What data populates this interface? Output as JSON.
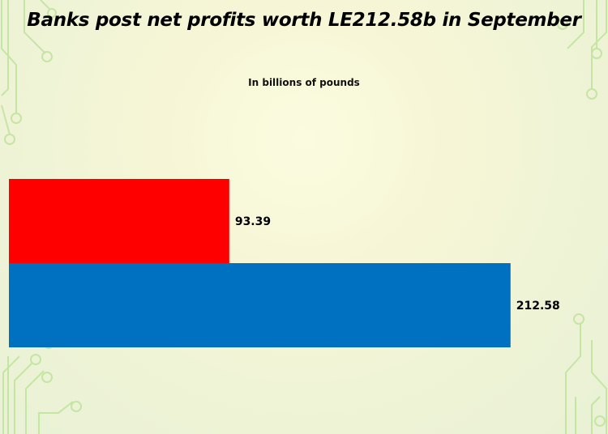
{
  "title": "Banks post net profits worth LE212.58b in September",
  "subtitle": "In billions of pounds",
  "colors": {
    "red_bar": "#ff0000",
    "blue_bar": "#0070c0",
    "decor_line": "#b8e08a",
    "background": "#f6f6d6"
  },
  "chart_data": {
    "type": "bar",
    "orientation": "horizontal",
    "categories": [
      "",
      ""
    ],
    "values": [
      93.39,
      212.58
    ],
    "labels": [
      "93.39",
      "212.58"
    ],
    "bar_colors": [
      "#ff0000",
      "#0070c0"
    ],
    "xlim": [
      0,
      213
    ],
    "grid": false,
    "legend": "none",
    "title": "Banks post net profits worth LE212.58b in September",
    "subtitle": "In billions of pounds",
    "xlabel": "",
    "ylabel": ""
  }
}
